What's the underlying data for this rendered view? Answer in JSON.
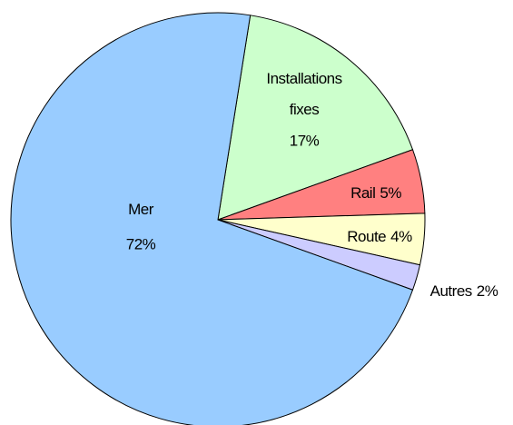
{
  "chart_data": {
    "type": "pie",
    "categories": [
      "Installations fixes",
      "Rail",
      "Route",
      "Autres",
      "Mer"
    ],
    "values": [
      17,
      5,
      4,
      2,
      72
    ],
    "value_labels": [
      "17%",
      "5%",
      "4%",
      "2%",
      "72%"
    ],
    "colors": [
      "#ccffcc",
      "#ff8080",
      "#ffffcc",
      "#ccccff",
      "#99ccff"
    ]
  }
}
